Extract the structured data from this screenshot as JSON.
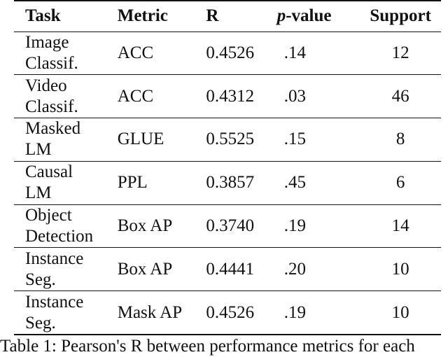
{
  "table": {
    "headers": {
      "task": "Task",
      "metric": "Metric",
      "r": "R",
      "p_italic": "p",
      "p_suffix": "-value",
      "support": "Support"
    },
    "rows": [
      {
        "task_line1": "Image",
        "task_line2": "Classif.",
        "metric": "ACC",
        "r": "0.4526",
        "p": ".14",
        "support": "12"
      },
      {
        "task_line1": "Video",
        "task_line2": "Classif.",
        "metric": "ACC",
        "r": "0.4312",
        "p": ".03",
        "support": "46"
      },
      {
        "task_line1": "Masked",
        "task_line2": "LM",
        "metric": "GLUE",
        "r": "0.5525",
        "p": ".15",
        "support": "8"
      },
      {
        "task_line1": "Causal",
        "task_line2": "LM",
        "metric": "PPL",
        "r": "0.3857",
        "p": ".45",
        "support": "6"
      },
      {
        "task_line1": "Object",
        "task_line2": "Detection",
        "metric": "Box AP",
        "r": "0.3740",
        "p": ".19",
        "support": "14"
      },
      {
        "task_line1": "Instance",
        "task_line2": "Seg.",
        "metric": "Box AP",
        "r": "0.4441",
        "p": ".20",
        "support": "10"
      },
      {
        "task_line1": "Instance",
        "task_line2": "Seg.",
        "metric": "Mask AP",
        "r": "0.4526",
        "p": ".19",
        "support": "10"
      }
    ]
  },
  "caption": "Table 1: Pearson's R between performance metrics for each"
}
